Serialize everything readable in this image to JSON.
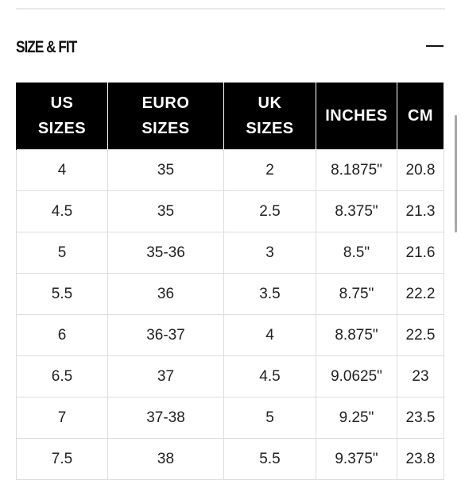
{
  "section": {
    "title": "SIZE & FIT",
    "collapse_icon": "minus-icon"
  },
  "table": {
    "headers": [
      {
        "line1": "US",
        "line2": "SIZES"
      },
      {
        "line1": "EURO",
        "line2": "SIZES"
      },
      {
        "line1": "UK",
        "line2": "SIZES"
      },
      {
        "line1": "INCHES",
        "line2": ""
      },
      {
        "line1": "CM",
        "line2": ""
      }
    ],
    "rows": [
      [
        "4",
        "35",
        "2",
        "8.1875\"",
        "20.8"
      ],
      [
        "4.5",
        "35",
        "2.5",
        "8.375\"",
        "21.3"
      ],
      [
        "5",
        "35-36",
        "3",
        "8.5\"",
        "21.6"
      ],
      [
        "5.5",
        "36",
        "3.5",
        "8.75\"",
        "22.2"
      ],
      [
        "6",
        "36-37",
        "4",
        "8.875\"",
        "22.5"
      ],
      [
        "6.5",
        "37",
        "4.5",
        "9.0625\"",
        "23"
      ],
      [
        "7",
        "37-38",
        "5",
        "9.25\"",
        "23.5"
      ],
      [
        "7.5",
        "38",
        "5.5",
        "9.375\"",
        "23.8"
      ]
    ]
  }
}
